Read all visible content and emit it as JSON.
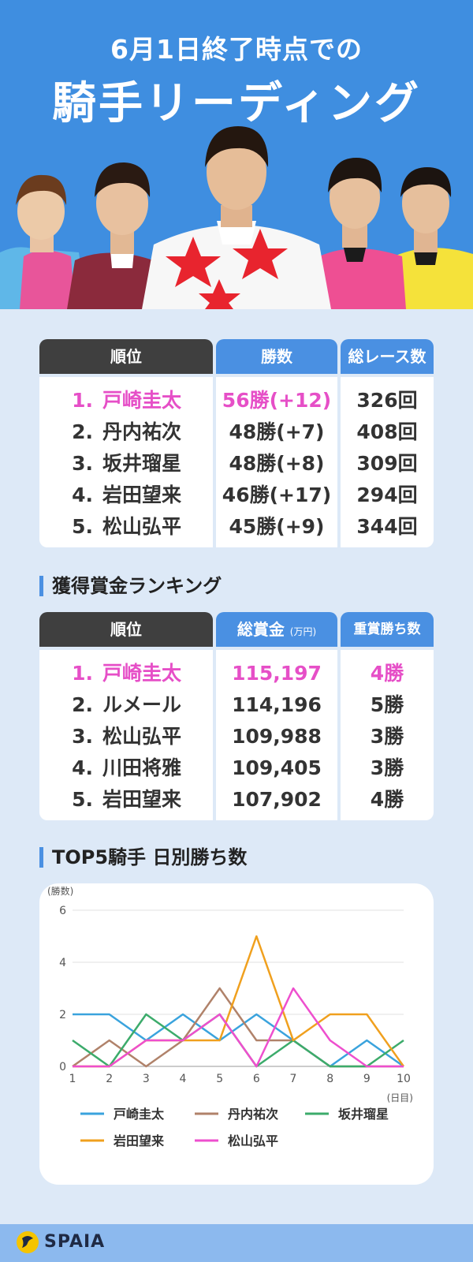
{
  "header": {
    "subtitle": "6月1日終了時点での",
    "title": "騎手リーディング"
  },
  "leading_table": {
    "headers": [
      "順位",
      "勝数",
      "総レース数"
    ],
    "rows": [
      {
        "rank": "1.",
        "name": "戸崎圭太",
        "wins": "56勝(+12)",
        "races": "326回"
      },
      {
        "rank": "2.",
        "name": "丹内祐次",
        "wins": "48勝(+7)",
        "races": "408回"
      },
      {
        "rank": "3.",
        "name": "坂井瑠星",
        "wins": "48勝(+8)",
        "races": "309回"
      },
      {
        "rank": "4.",
        "name": "岩田望来",
        "wins": "46勝(+17)",
        "races": "294回"
      },
      {
        "rank": "5.",
        "name": "松山弘平",
        "wins": "45勝(+9)",
        "races": "344回"
      }
    ]
  },
  "prize_section": {
    "title": "獲得賞金ランキング",
    "headers": [
      "順位",
      "総賞金",
      "(万円)",
      "重賞勝ち数"
    ],
    "rows": [
      {
        "rank": "1.",
        "name": "戸崎圭太",
        "prize": "115,197",
        "graded": "4勝"
      },
      {
        "rank": "2.",
        "name": "ルメール",
        "prize": "114,196",
        "graded": "5勝"
      },
      {
        "rank": "3.",
        "name": "松山弘平",
        "prize": "109,988",
        "graded": "3勝"
      },
      {
        "rank": "4.",
        "name": "川田将雅",
        "prize": "109,405",
        "graded": "3勝"
      },
      {
        "rank": "5.",
        "name": "岩田望来",
        "prize": "107,902",
        "graded": "4勝"
      }
    ]
  },
  "chart_section": {
    "title": "TOP5騎手 日別勝ち数"
  },
  "chart_data": {
    "type": "line",
    "title": "TOP5騎手 日別勝ち数",
    "ylabel": "(勝数)",
    "xlabel": "(日目)",
    "x": [
      1,
      2,
      3,
      4,
      5,
      6,
      7,
      8,
      9,
      10
    ],
    "ylim": [
      0,
      6
    ],
    "yticks": [
      0,
      2,
      4,
      6
    ],
    "grid": true,
    "legend_position": "bottom",
    "series": [
      {
        "name": "戸崎圭太",
        "color": "#3aa3dd",
        "values": [
          2,
          2,
          1,
          2,
          1,
          2,
          1,
          0,
          1,
          0
        ]
      },
      {
        "name": "丹内祐次",
        "color": "#b0826a",
        "values": [
          0,
          1,
          0,
          1,
          3,
          1,
          1,
          0,
          0,
          0
        ]
      },
      {
        "name": "坂井瑠星",
        "color": "#3cab6b",
        "values": [
          1,
          0,
          2,
          1,
          2,
          0,
          1,
          0,
          0,
          1
        ]
      },
      {
        "name": "岩田望来",
        "color": "#f0a01e",
        "values": [
          0,
          0,
          1,
          1,
          1,
          5,
          1,
          2,
          2,
          0
        ]
      },
      {
        "name": "松山弘平",
        "color": "#ee4fce",
        "values": [
          0,
          0,
          1,
          1,
          2,
          0,
          3,
          1,
          0,
          0
        ]
      }
    ]
  },
  "footer": {
    "logo_text": "SPAIA",
    "logo_color": "#f5c400"
  }
}
